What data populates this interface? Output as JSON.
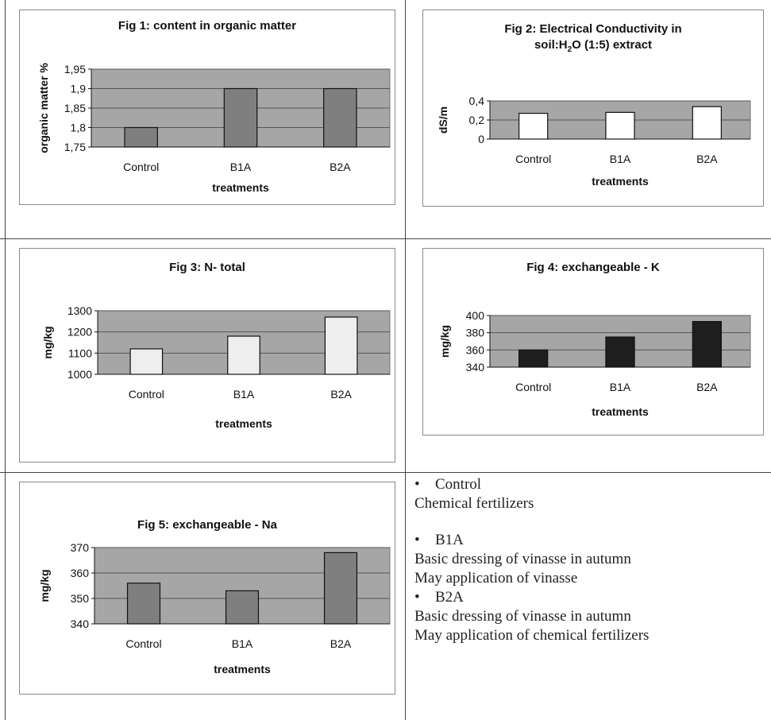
{
  "figures": [
    {
      "id": "fig1",
      "title": "Fig 1: content in organic matter",
      "ylabel": "organic matter %",
      "xlabel": "treatments",
      "bar_color": "#7f7f7f",
      "plot_bg": "#a6a6a6",
      "yticks": [
        "1,75",
        "1,8",
        "1,85",
        "1,9",
        "1,95"
      ],
      "ylim": [
        1.75,
        1.95
      ],
      "categories": [
        "Control",
        "B1A",
        "B2A"
      ],
      "values": [
        1.8,
        1.9,
        1.9
      ]
    },
    {
      "id": "fig2",
      "title_line1": "Fig 2: Electrical Conductivity in",
      "title_line2_a": "soil:H",
      "title_line2_sub": "2",
      "title_line2_b": "O (1:5) extract",
      "ylabel": "dS/m",
      "xlabel": "treatments",
      "bar_color": "#ffffff",
      "plot_bg": "#a6a6a6",
      "yticks": [
        "0",
        "0,2",
        "0,4"
      ],
      "ylim": [
        0,
        0.4
      ],
      "categories": [
        "Control",
        "B1A",
        "B2A"
      ],
      "values": [
        0.27,
        0.28,
        0.34
      ]
    },
    {
      "id": "fig3",
      "title": "Fig 3: N- total",
      "ylabel": "mg/kg",
      "xlabel": "treatments",
      "bar_color": "#eeeeee",
      "plot_bg": "#a6a6a6",
      "yticks": [
        "1000",
        "1100",
        "1200",
        "1300"
      ],
      "ylim": [
        1000,
        1300
      ],
      "categories": [
        "Control",
        "B1A",
        "B2A"
      ],
      "values": [
        1120,
        1180,
        1270
      ]
    },
    {
      "id": "fig4",
      "title": "Fig 4: exchangeable - K",
      "ylabel": "mg/kg",
      "xlabel": "treatments",
      "bar_color": "#1e1e1e",
      "plot_bg": "#a6a6a6",
      "yticks": [
        "340",
        "360",
        "380",
        "400"
      ],
      "ylim": [
        340,
        400
      ],
      "categories": [
        "Control",
        "B1A",
        "B2A"
      ],
      "values": [
        360,
        375,
        393
      ]
    },
    {
      "id": "fig5",
      "title": "Fig 5: exchangeable - Na",
      "ylabel": "mg/kg",
      "xlabel": "treatments",
      "bar_color": "#7f7f7f",
      "plot_bg": "#a6a6a6",
      "yticks": [
        "340",
        "350",
        "360",
        "370"
      ],
      "ylim": [
        340,
        370
      ],
      "categories": [
        "Control",
        "B1A",
        "B2A"
      ],
      "values": [
        356,
        353,
        368
      ]
    }
  ],
  "legend": {
    "items": [
      {
        "name": "Control",
        "lines": [
          "Chemical fertilizers"
        ]
      },
      {
        "name": "B1A",
        "lines": [
          "Basic dressing of vinasse in autumn",
          "May application of vinasse"
        ]
      },
      {
        "name": "B2A",
        "lines": [
          "Basic dressing of vinasse in autumn",
          "May application of chemical fertilizers"
        ]
      }
    ],
    "bullet": "•"
  },
  "chart_data": [
    {
      "type": "bar",
      "title": "Fig 1: content in organic matter",
      "xlabel": "treatments",
      "ylabel": "organic matter %",
      "categories": [
        "Control",
        "B1A",
        "B2A"
      ],
      "values": [
        1.8,
        1.9,
        1.9
      ],
      "ylim": [
        1.75,
        1.95
      ],
      "grid": true,
      "legend": "none"
    },
    {
      "type": "bar",
      "title": "Fig 2: Electrical Conductivity in soil:H2O (1:5) extract",
      "xlabel": "treatments",
      "ylabel": "dS/m",
      "categories": [
        "Control",
        "B1A",
        "B2A"
      ],
      "values": [
        0.27,
        0.28,
        0.34
      ],
      "ylim": [
        0,
        0.4
      ],
      "grid": true,
      "legend": "none"
    },
    {
      "type": "bar",
      "title": "Fig 3: N- total",
      "xlabel": "treatments",
      "ylabel": "mg/kg",
      "categories": [
        "Control",
        "B1A",
        "B2A"
      ],
      "values": [
        1120,
        1180,
        1270
      ],
      "ylim": [
        1000,
        1300
      ],
      "grid": true,
      "legend": "none"
    },
    {
      "type": "bar",
      "title": "Fig 4: exchangeable - K",
      "xlabel": "treatments",
      "ylabel": "mg/kg",
      "categories": [
        "Control",
        "B1A",
        "B2A"
      ],
      "values": [
        360,
        375,
        393
      ],
      "ylim": [
        340,
        400
      ],
      "grid": true,
      "legend": "none"
    },
    {
      "type": "bar",
      "title": "Fig 5: exchangeable - Na",
      "xlabel": "treatments",
      "ylabel": "mg/kg",
      "categories": [
        "Control",
        "B1A",
        "B2A"
      ],
      "values": [
        356,
        353,
        368
      ],
      "ylim": [
        340,
        370
      ],
      "grid": true,
      "legend": "none"
    }
  ]
}
